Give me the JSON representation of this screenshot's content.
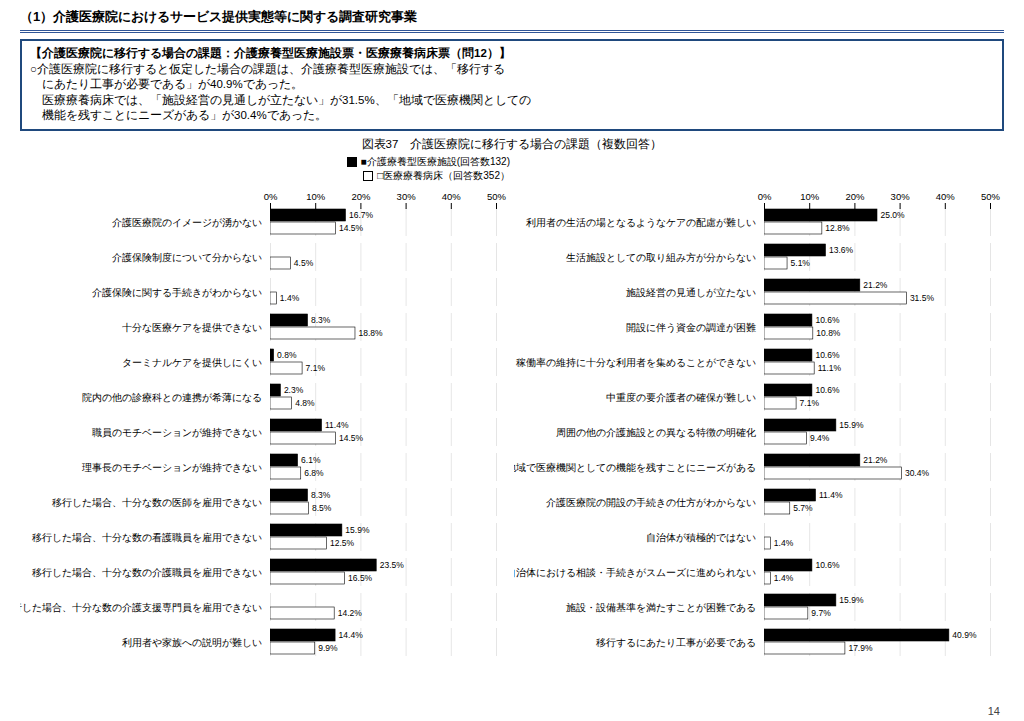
{
  "title": "（1）介護医療院におけるサービス提供実態等に関する調査研究事業",
  "annotations": [
    "【介護医療院に移行する場合の課題：介護療養型医療施設票・医療療養病床票（問12）】",
    "○介護医療院に移行すると仮定した場合の課題は、介護療養型医療施設では、「移行する",
    "　にあたり工事が必要である」が40.9%であった。",
    "　医療療養病床では、「施設経営の見通しが立たない」が31.5%、「地域で医療機関としての",
    "　機能を残すことにニーズがある」が30.4%であった。"
  ],
  "subtitle": "図表37　介護医療院に移行する場合の課題（複数回答）",
  "caption": "14",
  "chart_data": [
    {
      "type": "bar",
      "orientation": "horizontal",
      "categories": [
        "介護医療院のイメージが湧かない",
        "介護保険制度について分からない",
        "介護保険に関する手続きがわからない",
        "十分な医療ケアを提供できない",
        "ターミナルケアを提供しにくい",
        "院内の他の診療科との連携が希薄になる",
        "職員のモチベーションが維持できない",
        "理事長のモチベーションが維持できない",
        "移行した場合、十分な数の医師を雇用できない",
        "移行した場合、十分な数の看護職員を雇用できない",
        "移行した場合、十分な数の介護職員を雇用できない",
        "移行した場合、十分な数の介護支援専門員を雇用できない",
        "利用者や家族への説明が難しい"
      ],
      "series": [
        {
          "name": "■介護療養型医療施設(回答数132)",
          "color": "#000000",
          "values": [
            16.7,
            0.0,
            0.0,
            8.3,
            0.8,
            2.3,
            11.4,
            6.1,
            8.3,
            15.9,
            23.5,
            0.0,
            14.4
          ],
          "value_labels": [
            "16.7%",
            null,
            null,
            "8.3%",
            "0.8%",
            "2.3%",
            "11.4%",
            "6.1%",
            "8.3%",
            "15.9%",
            "23.5%",
            null,
            "14.4%"
          ]
        },
        {
          "name": "□医療療養病床（回答数352）",
          "color": "#ffffff",
          "values": [
            14.5,
            4.5,
            1.4,
            18.8,
            7.1,
            4.8,
            14.5,
            6.8,
            8.5,
            12.5,
            16.5,
            14.2,
            9.9
          ],
          "value_labels": [
            "14.5%",
            "4.5%",
            "1.4%",
            "18.8%",
            "7.1%",
            "4.8%",
            "14.5%",
            "6.8%",
            "8.5%",
            "12.5%",
            "16.5%",
            "14.2%",
            "9.9%"
          ]
        }
      ],
      "xlim": [
        0,
        50
      ],
      "xticks": [
        {
          "value": 0,
          "label": "0%"
        },
        {
          "value": 10,
          "label": "10%"
        },
        {
          "value": 20,
          "label": "20%"
        },
        {
          "value": 30,
          "label": "30%"
        },
        {
          "value": 40,
          "label": "40%"
        },
        {
          "value": 50,
          "label": "50%"
        }
      ],
      "grid": true,
      "data_labels": true,
      "legend": "upper right"
    },
    {
      "type": "bar",
      "orientation": "horizontal",
      "categories": [
        "利用者の生活の場となるようなケアの配慮が難しい",
        "生活施設としての取り組み方が分からない",
        "施設経営の見通しが立たない",
        "開設に伴う資金の調達が困難",
        "稼働率の維持に十分な利用者を集めることができない",
        "中重度の要介護者の確保が難しい",
        "周囲の他の介護施設との異なる特徴の明確化",
        "地域で医療機関としての機能を残すことにニーズがある",
        "介護医療院の開設の手続きの仕方がわからない",
        "自治体が積極的ではない",
        "自治体における相談・手続きがスムーズに進められない",
        "施設・設備基準を満たすことが困難である",
        "移行するにあたり工事が必要である"
      ],
      "series": [
        {
          "name": "■介護療養型医療施設(回答数132)",
          "color": "#000000",
          "values": [
            25.0,
            13.6,
            21.2,
            10.6,
            10.6,
            10.6,
            15.9,
            21.2,
            11.4,
            0.0,
            10.6,
            15.9,
            40.9
          ],
          "value_labels": [
            "25.0%",
            "13.6%",
            "21.2%",
            "10.6%",
            "10.6%",
            "10.6%",
            "15.9%",
            "21.2%",
            "11.4%",
            null,
            "10.6%",
            "15.9%",
            "40.9%"
          ]
        },
        {
          "name": "□医療療養病床（回答数352）",
          "color": "#ffffff",
          "values": [
            12.8,
            5.1,
            31.5,
            10.8,
            11.1,
            7.1,
            9.4,
            30.4,
            5.7,
            1.4,
            1.4,
            9.7,
            17.9
          ],
          "value_labels": [
            "12.8%",
            "5.1%",
            "31.5%",
            "10.8%",
            "11.1%",
            "7.1%",
            "9.4%",
            "30.4%",
            "5.7%",
            "1.4%",
            "1.4%",
            "9.7%",
            "17.9%"
          ]
        }
      ],
      "xlim": [
        0,
        50
      ],
      "xticks": [
        {
          "value": 0,
          "label": "0%"
        },
        {
          "value": 10,
          "label": "10%"
        },
        {
          "value": 20,
          "label": "20%"
        },
        {
          "value": 30,
          "label": "30%"
        },
        {
          "value": 40,
          "label": "40%"
        },
        {
          "value": 50,
          "label": "50%"
        }
      ],
      "grid": true,
      "data_labels": true
    }
  ]
}
